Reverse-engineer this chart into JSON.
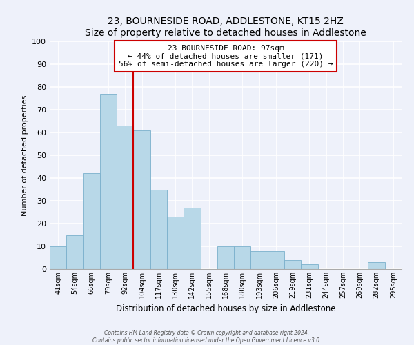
{
  "title": "23, BOURNESIDE ROAD, ADDLESTONE, KT15 2HZ",
  "subtitle": "Size of property relative to detached houses in Addlestone",
  "xlabel": "Distribution of detached houses by size in Addlestone",
  "ylabel": "Number of detached properties",
  "bar_labels": [
    "41sqm",
    "54sqm",
    "66sqm",
    "79sqm",
    "92sqm",
    "104sqm",
    "117sqm",
    "130sqm",
    "142sqm",
    "155sqm",
    "168sqm",
    "180sqm",
    "193sqm",
    "206sqm",
    "219sqm",
    "231sqm",
    "244sqm",
    "257sqm",
    "269sqm",
    "282sqm",
    "295sqm"
  ],
  "bar_values": [
    10,
    15,
    42,
    77,
    63,
    61,
    35,
    23,
    27,
    0,
    10,
    10,
    8,
    8,
    4,
    2,
    0,
    0,
    0,
    3,
    0
  ],
  "bar_color": "#b8d8e8",
  "bar_edge_color": "#7ab0cc",
  "property_line_x": 4.5,
  "annotation_title": "23 BOURNESIDE ROAD: 97sqm",
  "annotation_line1": "← 44% of detached houses are smaller (171)",
  "annotation_line2": "56% of semi-detached houses are larger (220) →",
  "annotation_box_color": "#ffffff",
  "annotation_box_edge": "#cc0000",
  "property_line_color": "#cc0000",
  "ylim": [
    0,
    100
  ],
  "yticks": [
    0,
    10,
    20,
    30,
    40,
    50,
    60,
    70,
    80,
    90,
    100
  ],
  "footer_line1": "Contains HM Land Registry data © Crown copyright and database right 2024.",
  "footer_line2": "Contains public sector information licensed under the Open Government Licence v3.0.",
  "bg_color": "#eef1fa",
  "plot_bg_color": "#eef1fa",
  "grid_color": "#ffffff",
  "title_fontsize": 10,
  "subtitle_fontsize": 9
}
